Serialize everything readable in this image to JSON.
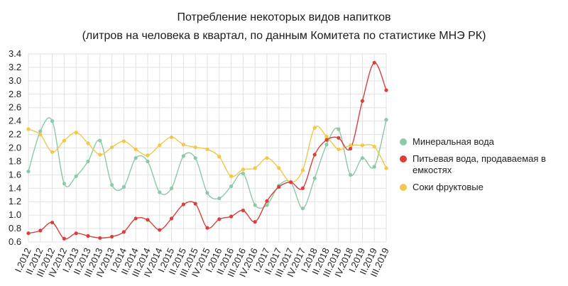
{
  "chart_data": {
    "type": "line",
    "title": "Потребление некоторых видов напитков",
    "subtitle": "(литров на человека в квартал, по данным Комитета по статистике МНЭ РК)",
    "xlabel": "",
    "ylabel": "",
    "ylim": [
      0.6,
      3.4
    ],
    "yticks": [
      "0.6",
      "0.8",
      "1.0",
      "1.2",
      "1.4",
      "1.6",
      "1.8",
      "2.0",
      "2.2",
      "2.4",
      "2.6",
      "2.8",
      "3.0",
      "3.2",
      "3.4"
    ],
    "grid": true,
    "legend_position": "right",
    "categories": [
      "I.2012",
      "II.2012",
      "III.2012",
      "IV.2012",
      "I.2013",
      "II.2013",
      "III.2013",
      "IV.2013",
      "I.2014",
      "II.2014",
      "III.2014",
      "IV.2014",
      "I.2015",
      "II.2015",
      "III.2015",
      "IV.2015",
      "I.2016",
      "II.2016",
      "III.2016",
      "IV.2016",
      "I.2017",
      "II.2017",
      "III.2017",
      "IV.2017",
      "I.2018",
      "II.2018",
      "III.2018",
      "IV.2018",
      "I.2019",
      "II.2019",
      "III.2019"
    ],
    "series": [
      {
        "name": "Минеральная вода",
        "color": "#8cc9a8",
        "values": [
          1.65,
          2.25,
          2.4,
          1.47,
          1.58,
          1.8,
          2.11,
          1.45,
          1.42,
          1.85,
          1.8,
          1.34,
          1.4,
          1.88,
          1.85,
          1.33,
          1.25,
          1.43,
          1.62,
          1.15,
          1.15,
          1.44,
          1.49,
          1.1,
          1.55,
          2.05,
          2.28,
          1.6,
          1.85,
          1.72,
          2.42
        ]
      },
      {
        "name": "Питьевая вода, продаваемая в емкостях",
        "color": "#d9403b",
        "values": [
          0.73,
          0.77,
          0.89,
          0.65,
          0.73,
          0.69,
          0.66,
          0.68,
          0.75,
          0.95,
          0.93,
          0.78,
          0.95,
          1.16,
          1.17,
          0.81,
          0.94,
          0.98,
          1.07,
          0.9,
          1.21,
          1.42,
          1.49,
          1.4,
          1.9,
          2.12,
          2.15,
          1.99,
          2.7,
          3.27,
          2.86
        ]
      },
      {
        "name": "Соки фруктовые",
        "color": "#f2c74b",
        "values": [
          2.28,
          2.2,
          1.94,
          2.11,
          2.23,
          2.07,
          1.9,
          2.01,
          2.1,
          1.98,
          1.89,
          2.04,
          2.16,
          2.05,
          2.01,
          1.98,
          1.87,
          1.58,
          1.68,
          1.7,
          1.85,
          1.7,
          1.49,
          1.67,
          2.3,
          2.17,
          1.98,
          2.04,
          2.04,
          2.02,
          1.7
        ]
      }
    ]
  }
}
